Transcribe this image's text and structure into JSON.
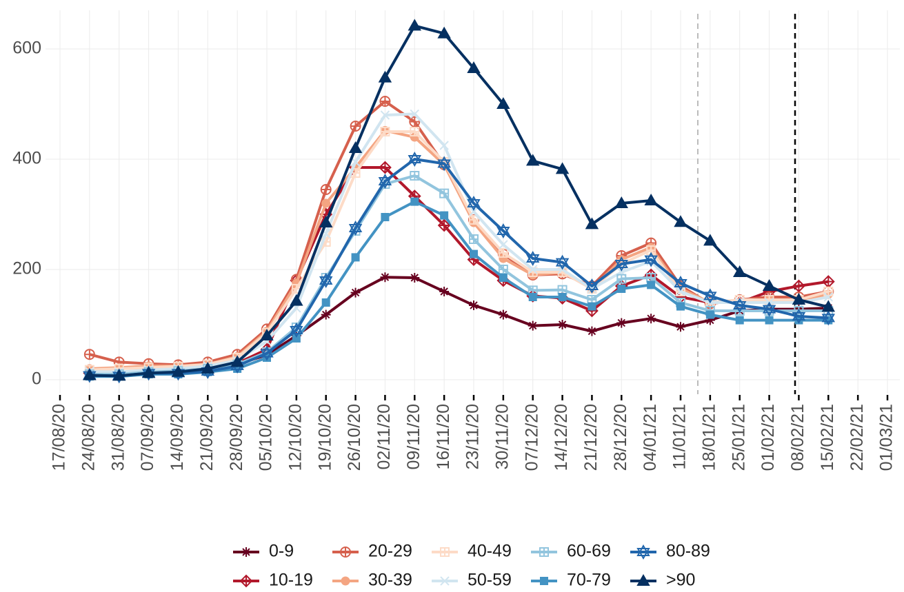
{
  "chart_data": {
    "type": "line",
    "categories": [
      "17/08/20",
      "24/08/20",
      "31/08/20",
      "07/09/20",
      "14/09/20",
      "21/09/20",
      "28/09/20",
      "05/10/20",
      "12/10/20",
      "19/10/20",
      "26/10/20",
      "02/11/20",
      "09/11/20",
      "16/11/20",
      "23/11/20",
      "30/11/20",
      "07/12/20",
      "14/12/20",
      "21/12/20",
      "28/12/20",
      "04/01/21",
      "11/01/21",
      "18/01/21",
      "25/01/21",
      "01/02/21",
      "08/02/21",
      "15/02/21",
      "22/02/21",
      "01/03/21"
    ],
    "ylim": [
      -25,
      670
    ],
    "yticks": [
      0,
      200,
      400,
      600
    ],
    "grid": true,
    "legend": "bottom",
    "series": [
      {
        "name": "0-9",
        "color": "#67001f",
        "marker": "asterisk",
        "values": [
          null,
          8,
          8,
          12,
          14,
          16,
          28,
          45,
          80,
          118,
          158,
          186,
          185,
          160,
          135,
          118,
          98,
          100,
          88,
          103,
          111,
          96,
          108,
          125,
          128,
          128,
          130,
          null,
          null
        ]
      },
      {
        "name": "10-19",
        "color": "#b2182b",
        "marker": "diamond-plus",
        "values": [
          null,
          12,
          10,
          14,
          16,
          20,
          30,
          55,
          180,
          300,
          385,
          385,
          333,
          280,
          218,
          180,
          152,
          148,
          125,
          170,
          190,
          150,
          140,
          140,
          160,
          170,
          178,
          null,
          null
        ]
      },
      {
        "name": "20-29",
        "color": "#d6604d",
        "marker": "circle-plus",
        "values": [
          null,
          46,
          32,
          29,
          27,
          32,
          46,
          92,
          182,
          345,
          460,
          505,
          468,
          390,
          290,
          228,
          190,
          192,
          170,
          225,
          248,
          170,
          138,
          145,
          150,
          150,
          160,
          null,
          null
        ]
      },
      {
        "name": "30-39",
        "color": "#f4a582",
        "marker": "circle",
        "values": [
          null,
          20,
          22,
          25,
          25,
          28,
          42,
          88,
          175,
          320,
          385,
          452,
          440,
          390,
          285,
          220,
          190,
          195,
          165,
          218,
          240,
          165,
          140,
          140,
          145,
          145,
          155,
          null,
          null
        ]
      },
      {
        "name": "40-49",
        "color": "#fddbc7",
        "marker": "square-plus",
        "values": [
          null,
          18,
          20,
          22,
          24,
          28,
          40,
          85,
          165,
          250,
          375,
          450,
          450,
          395,
          290,
          230,
          195,
          195,
          165,
          210,
          235,
          160,
          140,
          145,
          145,
          145,
          160,
          null,
          null
        ]
      },
      {
        "name": "50-59",
        "color": "#d1e5f0",
        "marker": "x",
        "values": [
          null,
          15,
          14,
          18,
          20,
          25,
          35,
          70,
          130,
          265,
          395,
          480,
          482,
          425,
          305,
          245,
          200,
          200,
          165,
          195,
          215,
          160,
          140,
          140,
          140,
          140,
          150,
          null,
          null
        ]
      },
      {
        "name": "60-69",
        "color": "#92c5de",
        "marker": "square-plus",
        "values": [
          null,
          10,
          10,
          14,
          16,
          20,
          28,
          50,
          95,
          185,
          270,
          355,
          370,
          338,
          255,
          200,
          162,
          163,
          145,
          183,
          185,
          140,
          125,
          125,
          125,
          125,
          125,
          null,
          null
        ]
      },
      {
        "name": "70-79",
        "color": "#4393c3",
        "marker": "square",
        "values": [
          null,
          6,
          6,
          10,
          10,
          14,
          20,
          40,
          75,
          140,
          222,
          295,
          323,
          298,
          228,
          185,
          150,
          150,
          133,
          165,
          172,
          133,
          118,
          108,
          108,
          108,
          108,
          null,
          null
        ]
      },
      {
        "name": "80-89",
        "color": "#2166ac",
        "marker": "star",
        "values": [
          null,
          8,
          7,
          12,
          12,
          15,
          25,
          48,
          90,
          180,
          275,
          360,
          400,
          392,
          320,
          270,
          220,
          213,
          170,
          210,
          218,
          175,
          152,
          135,
          128,
          115,
          112,
          null,
          null
        ]
      },
      {
        "name": ">90",
        "color": "#053061",
        "marker": "triangle",
        "values": [
          null,
          8,
          7,
          12,
          14,
          20,
          32,
          80,
          143,
          285,
          420,
          548,
          642,
          628,
          565,
          500,
          397,
          382,
          282,
          320,
          325,
          286,
          252,
          195,
          170,
          145,
          132,
          null,
          null
        ]
      }
    ]
  }
}
